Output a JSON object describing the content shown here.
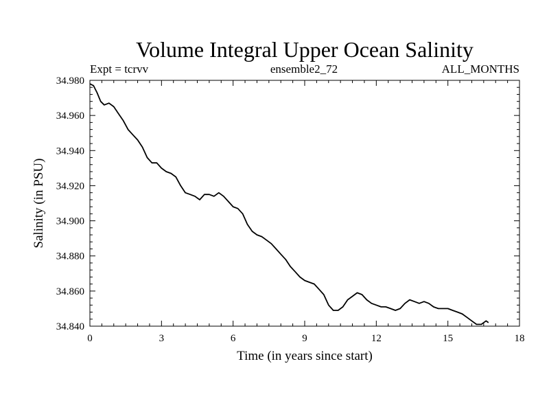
{
  "chart_data": {
    "type": "line",
    "title": "Volume Integral Upper Ocean Salinity",
    "subtitle_left": "Expt = tcrvv",
    "subtitle_center": "ensemble2_72",
    "subtitle_right": "ALL_MONTHS",
    "xlabel": "Time (in years since start)",
    "ylabel": "Salinity (in PSU)",
    "xlim": [
      0,
      18
    ],
    "ylim": [
      34.84,
      34.98
    ],
    "xticks": [
      0,
      3,
      6,
      9,
      12,
      15,
      18
    ],
    "xtick_labels": [
      "0",
      "3",
      "6",
      "9",
      "12",
      "15",
      "18"
    ],
    "yticks": [
      34.84,
      34.86,
      34.88,
      34.9,
      34.92,
      34.94,
      34.96,
      34.98
    ],
    "ytick_labels": [
      "34.840",
      "34.860",
      "34.880",
      "34.900",
      "34.920",
      "34.940",
      "34.960",
      "34.980"
    ],
    "grid": false,
    "series": [
      {
        "name": "salinity",
        "x": [
          0.0,
          0.15,
          0.3,
          0.45,
          0.6,
          0.8,
          1.0,
          1.2,
          1.4,
          1.6,
          1.8,
          2.0,
          2.2,
          2.4,
          2.6,
          2.8,
          3.0,
          3.2,
          3.4,
          3.6,
          3.8,
          4.0,
          4.2,
          4.4,
          4.6,
          4.8,
          5.0,
          5.2,
          5.4,
          5.6,
          5.8,
          6.0,
          6.2,
          6.4,
          6.6,
          6.8,
          7.0,
          7.2,
          7.4,
          7.6,
          7.8,
          8.0,
          8.2,
          8.4,
          8.6,
          8.8,
          9.0,
          9.2,
          9.4,
          9.6,
          9.8,
          10.0,
          10.2,
          10.4,
          10.6,
          10.8,
          11.0,
          11.2,
          11.4,
          11.6,
          11.8,
          12.0,
          12.2,
          12.4,
          12.6,
          12.8,
          13.0,
          13.2,
          13.4,
          13.6,
          13.8,
          14.0,
          14.2,
          14.4,
          14.6,
          14.8,
          15.0,
          15.2,
          15.4,
          15.6,
          15.8,
          16.0,
          16.2,
          16.4,
          16.6,
          16.7
        ],
        "y": [
          34.978,
          34.977,
          34.973,
          34.968,
          34.966,
          34.967,
          34.965,
          34.961,
          34.957,
          34.952,
          34.949,
          34.946,
          34.942,
          34.936,
          34.933,
          34.933,
          34.93,
          34.928,
          34.927,
          34.925,
          34.92,
          34.916,
          34.915,
          34.914,
          34.912,
          34.915,
          34.915,
          34.914,
          34.916,
          34.914,
          34.911,
          34.908,
          34.907,
          34.904,
          34.898,
          34.894,
          34.892,
          34.891,
          34.889,
          34.887,
          34.884,
          34.881,
          34.878,
          34.874,
          34.871,
          34.868,
          34.866,
          34.865,
          34.864,
          34.861,
          34.858,
          34.852,
          34.849,
          34.849,
          34.851,
          34.855,
          34.857,
          34.859,
          34.858,
          34.855,
          34.853,
          34.852,
          34.851,
          34.851,
          34.85,
          34.849,
          34.85,
          34.853,
          34.855,
          34.854,
          34.853,
          34.854,
          34.853,
          34.851,
          34.85,
          34.85,
          34.85,
          34.849,
          34.848,
          34.847,
          34.845,
          34.843,
          34.841,
          34.841,
          34.843,
          34.842
        ]
      }
    ]
  }
}
